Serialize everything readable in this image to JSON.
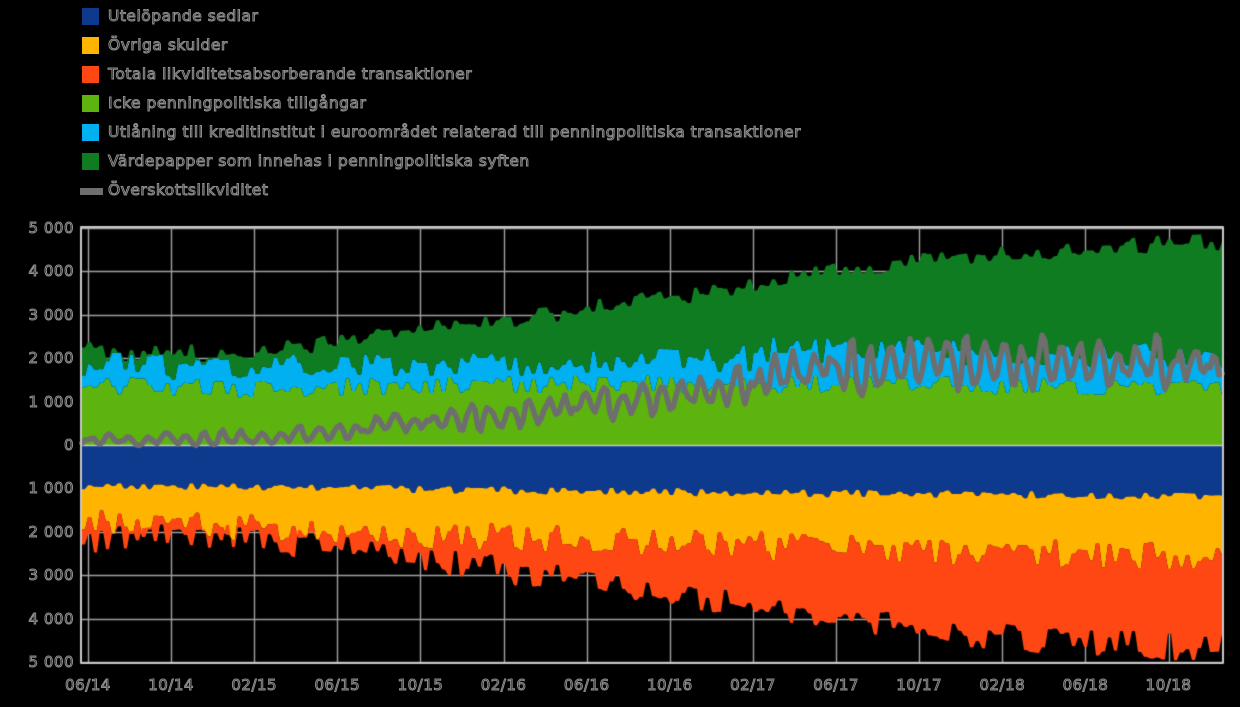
{
  "background": "#000000",
  "axis": {
    "text_color": "#8f8f8f",
    "grid_color": "#a0a0a0",
    "frame_color": "#c8c8c8",
    "zero_line_color": "#c8c8c8",
    "y_tick_labels": [
      "5 000",
      "4 000",
      "3 000",
      "2 000",
      "1 000",
      "0",
      "1 000",
      "2 000",
      "3 000",
      "4 000",
      "5 000"
    ],
    "y_tick_values": [
      5000,
      4000,
      3000,
      2000,
      1000,
      0,
      -1000,
      -2000,
      -3000,
      -4000,
      -5000
    ],
    "x_tick_labels": [
      "06/14",
      "10/14",
      "02/15",
      "06/15",
      "10/15",
      "02/16",
      "06/16",
      "10/16",
      "02/17",
      "06/17",
      "10/17",
      "02/18",
      "06/18",
      "10/18"
    ]
  },
  "legend": {
    "items": [
      {
        "label": "Utelöpande sedlar",
        "color": "#0e3a8e",
        "shape": "square"
      },
      {
        "label": "Övriga skulder",
        "color": "#ffb400",
        "shape": "square"
      },
      {
        "label": "Totala likviditetsabsorberande transaktioner",
        "color": "#ff4713",
        "shape": "square"
      },
      {
        "label": "Icke penningpolitiska tillgångar",
        "color": "#5eb40e",
        "shape": "square"
      },
      {
        "label": "Utlåning till kreditinstitut i euroområdet relaterad till penningpolitiska transaktioner",
        "color": "#00b0f0",
        "shape": "square"
      },
      {
        "label": "Värdepapper som innehas i penningpolitiska syften",
        "color": "#107c21",
        "shape": "square"
      },
      {
        "label": "Överskottslikviditet",
        "color": "#6e6e6e",
        "shape": "line"
      }
    ]
  },
  "chart_data": {
    "type": "area",
    "stacked": true,
    "title": "",
    "xlabel": "",
    "ylabel": "",
    "x_start": "2014-06",
    "x_interval": "monthly",
    "x_points": 55,
    "x_tick_month_index": [
      0,
      4,
      8,
      12,
      16,
      20,
      24,
      28,
      32,
      36,
      40,
      44,
      48,
      52
    ],
    "x_tick_labels": [
      "06/14",
      "10/14",
      "02/15",
      "06/15",
      "10/15",
      "02/16",
      "06/16",
      "10/16",
      "02/17",
      "06/17",
      "10/17",
      "02/18",
      "06/18",
      "10/18"
    ],
    "ylim": [
      -5000,
      5000
    ],
    "y_tick_step": 1000,
    "grid": true,
    "legend_position": "top-left",
    "series": [
      {
        "name": "Icke penningpolitiska tillgångar",
        "color": "#5eb40e",
        "stack": "positive",
        "values": [
          1370,
          1360,
          1350,
          1340,
          1330,
          1318,
          1305,
          1293,
          1280,
          1293,
          1305,
          1318,
          1330,
          1338,
          1345,
          1353,
          1360,
          1368,
          1375,
          1383,
          1390,
          1395,
          1400,
          1405,
          1410,
          1405,
          1400,
          1395,
          1390,
          1390,
          1390,
          1390,
          1390,
          1393,
          1395,
          1398,
          1400,
          1393,
          1385,
          1378,
          1370,
          1370,
          1370,
          1370,
          1370,
          1360,
          1350,
          1340,
          1330,
          1323,
          1315,
          1308,
          1300,
          1295,
          1290
        ]
      },
      {
        "name": "Utlåning till kreditinstitut i euroområdet relaterad till penningpolitiska transaktioner",
        "color": "#00b0f0",
        "stack": "positive",
        "values": [
          510,
          500,
          490,
          480,
          470,
          478,
          485,
          493,
          500,
          498,
          495,
          493,
          490,
          488,
          485,
          483,
          480,
          485,
          490,
          495,
          500,
          508,
          515,
          523,
          530,
          540,
          550,
          560,
          570,
          578,
          585,
          593,
          600,
          790,
          787,
          784,
          780,
          778,
          775,
          773,
          770,
          765,
          760,
          755,
          750,
          750,
          750,
          750,
          750,
          755,
          760,
          765,
          770,
          770,
          770
        ]
      },
      {
        "name": "Värdepapper som innehas i penningpolitiska syften",
        "color": "#107c21",
        "stack": "positive",
        "values": [
          300,
          300,
          300,
          300,
          300,
          320,
          340,
          360,
          380,
          425,
          470,
          515,
          560,
          615,
          670,
          725,
          780,
          833,
          885,
          938,
          990,
          1043,
          1095,
          1148,
          1200,
          1265,
          1330,
          1395,
          1460,
          1513,
          1565,
          1618,
          1670,
          1660,
          1700,
          1775,
          1850,
          1910,
          1970,
          2030,
          2090,
          2143,
          2195,
          2248,
          2300,
          2340,
          2380,
          2420,
          2460,
          2488,
          2515,
          2543,
          2570,
          2590,
          2610
        ]
      },
      {
        "name": "Utelöpande sedlar",
        "color": "#0e3a8e",
        "stack": "negative",
        "values": [
          950,
          954,
          958,
          961,
          965,
          969,
          973,
          976,
          980,
          985,
          990,
          995,
          1000,
          1005,
          1010,
          1015,
          1020,
          1026,
          1033,
          1039,
          1045,
          1051,
          1058,
          1064,
          1070,
          1074,
          1078,
          1081,
          1085,
          1089,
          1093,
          1096,
          1100,
          1104,
          1108,
          1111,
          1115,
          1119,
          1123,
          1126,
          1130,
          1134,
          1138,
          1141,
          1145,
          1149,
          1153,
          1156,
          1160,
          1163,
          1165,
          1168,
          1170,
          1173,
          1175
        ]
      },
      {
        "name": "Övriga skulder",
        "color": "#ffb400",
        "stack": "negative",
        "values": [
          870,
          874,
          878,
          881,
          885,
          894,
          903,
          911,
          920,
          935,
          950,
          965,
          980,
          995,
          1010,
          1025,
          1040,
          1049,
          1058,
          1066,
          1075,
          1084,
          1093,
          1101,
          1110,
          1121,
          1133,
          1144,
          1155,
          1169,
          1183,
          1196,
          1210,
          1224,
          1238,
          1251,
          1265,
          1274,
          1283,
          1291,
          1300,
          1309,
          1318,
          1326,
          1335,
          1341,
          1348,
          1354,
          1360,
          1368,
          1375,
          1383,
          1390,
          1393,
          1395
        ]
      },
      {
        "name": "Totala likviditetsabsorberande transaktioner",
        "color": "#ff4713",
        "stack": "negative",
        "values": [
          360,
          330,
          305,
          280,
          250,
          253,
          254,
          259,
          260,
          296,
          330,
          366,
          400,
          441,
          480,
          521,
          560,
          611,
          659,
          711,
          760,
          811,
          859,
          911,
          960,
          1015,
          1069,
          1125,
          1180,
          1223,
          1264,
          1309,
          1350,
          1515,
          1536,
          1595,
          1650,
          1688,
          1724,
          1764,
          1800,
          1835,
          1869,
          1906,
          1940,
          1960,
          1979,
          2000,
          2020,
          2035,
          2050,
          2065,
          2080,
          2089,
          2100
        ]
      }
    ],
    "line": {
      "name": "Överskottslikviditet",
      "color": "#6e6e6e",
      "values": [
        120,
        110,
        100,
        120,
        140,
        150,
        165,
        178,
        190,
        220,
        255,
        288,
        320,
        370,
        420,
        470,
        520,
        560,
        600,
        640,
        680,
        735,
        790,
        845,
        900,
        958,
        1015,
        1073,
        1130,
        1185,
        1240,
        1295,
        1350,
        1600,
        1640,
        1710,
        1780,
        1790,
        1800,
        1810,
        1820,
        1833,
        1845,
        1858,
        1870,
        1878,
        1885,
        1893,
        1900,
        1888,
        1875,
        1863,
        1850,
        1860,
        1870
      ]
    }
  }
}
